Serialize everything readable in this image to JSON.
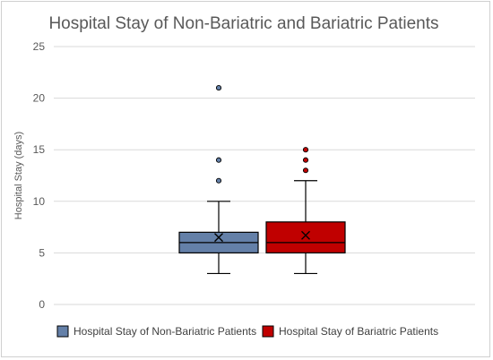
{
  "chart_data": {
    "type": "box",
    "title": "Hospital Stay of Non-Bariatric and Bariatric Patients",
    "ylabel": "Hospital Stay (days)",
    "ylim": [
      0,
      25
    ],
    "yticks": [
      0,
      5,
      10,
      15,
      20,
      25
    ],
    "grid": true,
    "legend_position": "bottom",
    "series": [
      {
        "name": "Hospital Stay of Non-Bariatric Patients",
        "color": "#6480A8",
        "min": 3,
        "q1": 5,
        "median": 6,
        "q3": 7,
        "max": 10,
        "mean": 6.5,
        "outliers": [
          12,
          14,
          21
        ]
      },
      {
        "name": "Hospital Stay of Bariatric Patients",
        "color": "#C00000",
        "min": 3,
        "q1": 5,
        "median": 6,
        "q3": 8,
        "max": 12,
        "mean": 6.7,
        "outliers": [
          13,
          14,
          15
        ]
      }
    ]
  }
}
